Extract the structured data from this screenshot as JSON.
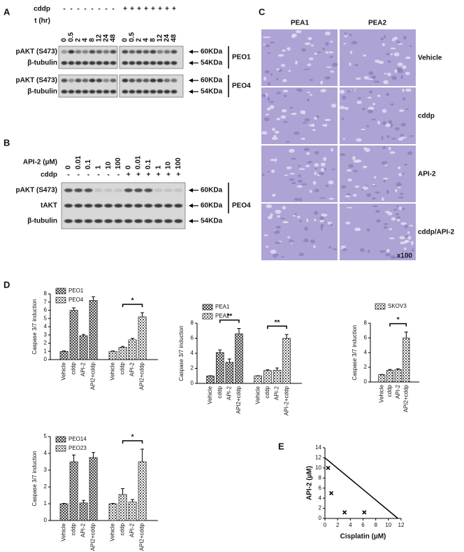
{
  "labels": [
    "A",
    "B",
    "C",
    "D",
    "E"
  ],
  "panel_a": {
    "cddp_label": "cddp",
    "cddp": [
      "-",
      "-",
      "-",
      "-",
      "-",
      "-",
      "-",
      "-",
      "+",
      "+",
      "+",
      "+",
      "+",
      "+",
      "+",
      "+"
    ],
    "time_label": "t (hr)",
    "times": [
      "0",
      "0.5",
      "2",
      "4",
      "8",
      "12",
      "24",
      "48",
      "0",
      "0.5",
      "2",
      "4",
      "8",
      "12",
      "24",
      "48"
    ],
    "blots": [
      {
        "cell_line": "PEO1",
        "rows": [
          {
            "label": "pAKT (S473)",
            "size": "60KDa"
          },
          {
            "label": "β-tubulin",
            "size": "54KDa"
          }
        ]
      },
      {
        "cell_line": "PEO4",
        "rows": [
          {
            "label": "pAKT (S473)",
            "size": "60KDa"
          },
          {
            "label": "β-tubulin",
            "size": "54KDa"
          }
        ]
      }
    ]
  },
  "panel_b": {
    "api2_label": "API-2 (µM)",
    "api2": [
      "0",
      "0.01",
      "0.1",
      "1",
      "10",
      "100",
      "0",
      "0.01",
      "0.1",
      "1",
      "10",
      "100"
    ],
    "cddp_label": "cddp",
    "cddp": [
      "-",
      "-",
      "-",
      "-",
      "-",
      "-",
      "+",
      "+",
      "+",
      "+",
      "+",
      "+"
    ],
    "cell_line": "PEO4",
    "rows": [
      {
        "label": "pAKT (S473)",
        "size": "60KDa"
      },
      {
        "label": "tAKT",
        "size": "60KDa"
      },
      {
        "label": "β-tubulin",
        "size": "54KDa"
      }
    ]
  },
  "panel_c": {
    "columns": [
      "PEA1",
      "PEA2"
    ],
    "rows": [
      "Vehicle",
      "cddp",
      "API-2",
      "cddp/API-2"
    ],
    "magnification": "x100"
  },
  "chart_data": [
    {
      "type": "bar",
      "y_label": "Caspase 3/7 induction",
      "ylim": [
        0,
        8
      ],
      "yticks": [
        0,
        1,
        2,
        3,
        4,
        5,
        6,
        7,
        8
      ],
      "series": [
        {
          "name": "PEO1",
          "pattern": "dark-check",
          "categories": [
            "Vehicle",
            "cddp",
            "API-2",
            "API2+cddp"
          ],
          "values": [
            1,
            6.0,
            2.9,
            7.2
          ],
          "errors": [
            0.05,
            0.3,
            0.15,
            0.45
          ]
        },
        {
          "name": "PEO4",
          "pattern": "light-check",
          "categories": [
            "Vehicle",
            "cddp",
            "API-2",
            "API2+cddp"
          ],
          "values": [
            1.0,
            1.5,
            2.4,
            5.2
          ],
          "errors": [
            0.05,
            0.1,
            0.2,
            0.5
          ]
        }
      ],
      "significance": [
        {
          "label": "*",
          "series": 1,
          "from": 1,
          "to": 3
        }
      ]
    },
    {
      "type": "bar",
      "y_label": "Caspase 3/7 induction",
      "ylim": [
        0,
        8
      ],
      "yticks": [
        0,
        2,
        4,
        6,
        8
      ],
      "series": [
        {
          "name": "PEA1",
          "pattern": "dark-check",
          "categories": [
            "Vehicle",
            "cddp",
            "API-2",
            "API2+cddp"
          ],
          "values": [
            1,
            4.1,
            2.8,
            6.6
          ],
          "errors": [
            0.02,
            0.35,
            0.45,
            0.7
          ]
        },
        {
          "name": "PEA2",
          "pattern": "light-check",
          "categories": [
            "Vehicle",
            "cddp",
            "API-2",
            "API-2+cddp"
          ],
          "values": [
            1.0,
            1.7,
            1.75,
            6.0
          ],
          "errors": [
            0.02,
            0.1,
            0.3,
            0.5
          ]
        }
      ],
      "significance": [
        {
          "label": "**",
          "series": 0,
          "from": 1,
          "to": 3
        },
        {
          "label": "**",
          "series": 1,
          "from": 1,
          "to": 3
        }
      ]
    },
    {
      "type": "bar",
      "y_label": "Caspase 3/7 induction",
      "ylim": [
        0,
        8
      ],
      "yticks": [
        0,
        2,
        4,
        6,
        8
      ],
      "series": [
        {
          "name": "SKOV3",
          "pattern": "light-check",
          "categories": [
            "Vehicle",
            "cddp",
            "API-2",
            "API2+cddp"
          ],
          "values": [
            1,
            1.6,
            1.7,
            6.0
          ],
          "errors": [
            0.02,
            0.1,
            0.1,
            0.8
          ]
        }
      ],
      "significance": [
        {
          "label": "*",
          "series": 0,
          "from": 1,
          "to": 3
        }
      ]
    },
    {
      "type": "bar",
      "y_label": "Caspase 3/7 induction",
      "ylim": [
        0,
        5
      ],
      "yticks": [
        0,
        1,
        2,
        3,
        4,
        5
      ],
      "series": [
        {
          "name": "PEO14",
          "pattern": "dark-check",
          "categories": [
            "Vehicle",
            "cddp",
            "API-2",
            "API2+cddp"
          ],
          "values": [
            1,
            3.5,
            1.05,
            3.75
          ],
          "errors": [
            0.02,
            0.4,
            0.15,
            0.3
          ]
        },
        {
          "name": "PEO23",
          "pattern": "light-check",
          "categories": [
            "Vehicle",
            "cddp",
            "API-2",
            "API2+cddp"
          ],
          "values": [
            1.0,
            1.55,
            1.1,
            3.5
          ],
          "errors": [
            0.02,
            0.35,
            0.15,
            0.75
          ]
        }
      ],
      "significance": [
        {
          "label": "*",
          "series": 1,
          "from": 1,
          "to": 3
        }
      ]
    },
    {
      "type": "scatter",
      "x_label": "Cisplatin (µM)",
      "y_label": "API-2 (µM)",
      "xlim": [
        0,
        12
      ],
      "xticks": [
        0,
        2,
        4,
        6,
        8,
        10,
        12
      ],
      "ylim": [
        0,
        14
      ],
      "yticks": [
        0,
        2,
        4,
        6,
        8,
        10,
        12,
        14
      ],
      "points": {
        "x": [
          0.5,
          1,
          3.1,
          6.2
        ],
        "y": [
          10,
          5,
          1.2,
          1.2
        ]
      },
      "line": {
        "x": [
          0,
          11.5
        ],
        "y": [
          12,
          0
        ]
      }
    }
  ]
}
